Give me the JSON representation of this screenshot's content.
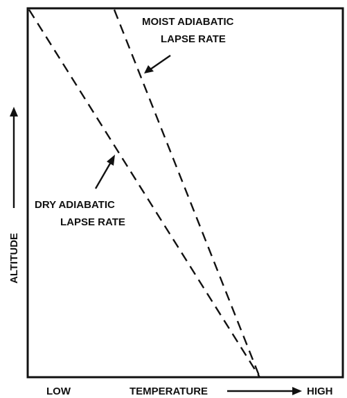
{
  "diagram": {
    "x_axis": {
      "low_label": "LOW",
      "title": "TEMPERATURE",
      "high_label": "HIGH"
    },
    "y_axis": {
      "title": "ALTITUDE"
    },
    "curves": {
      "moist": {
        "label_line1": "MOIST ADIABATIC",
        "label_line2": "LAPSE RATE"
      },
      "dry": {
        "label_line1": "DRY ADIABATIC",
        "label_line2": "LAPSE RATE"
      }
    },
    "colors": {
      "ink": "#111111",
      "background": "#ffffff"
    }
  }
}
